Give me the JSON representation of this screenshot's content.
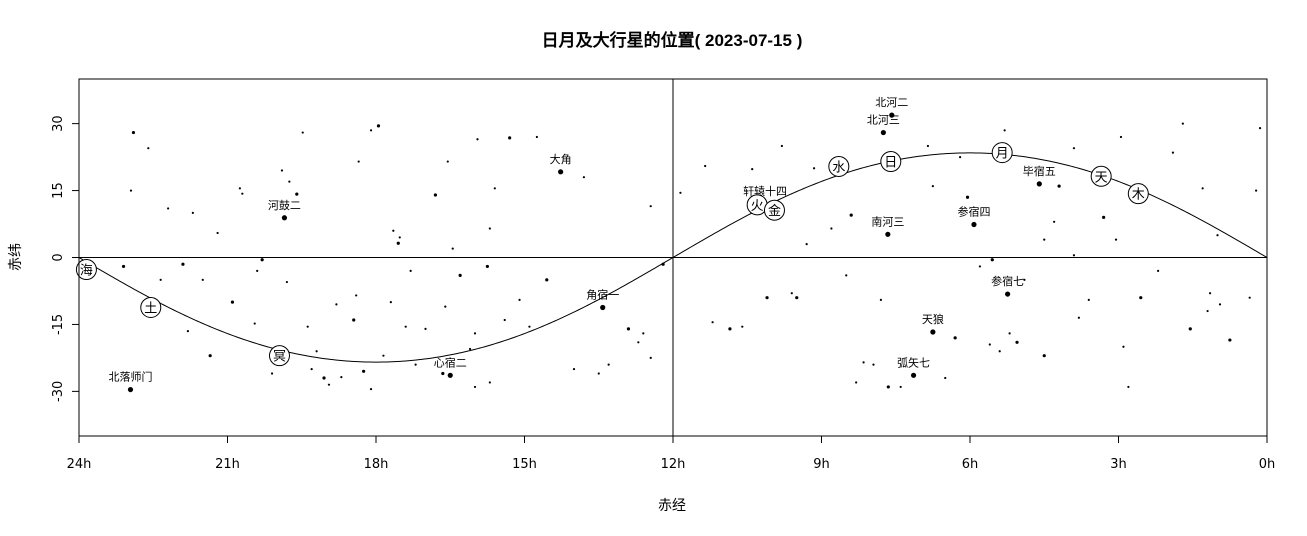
{
  "chart_data": {
    "type": "scatter",
    "title": "日月及大行星的位置( 2023-07-15 )",
    "xlabel": "赤经",
    "ylabel": "赤纬",
    "xlim": [
      24,
      0
    ],
    "ylim": [
      -40,
      40
    ],
    "x_ticks": [
      {
        "value": 24,
        "label": "24h"
      },
      {
        "value": 21,
        "label": "21h"
      },
      {
        "value": 18,
        "label": "18h"
      },
      {
        "value": 15,
        "label": "15h"
      },
      {
        "value": 12,
        "label": "12h"
      },
      {
        "value": 9,
        "label": "9h"
      },
      {
        "value": 6,
        "label": "6h"
      },
      {
        "value": 3,
        "label": "3h"
      },
      {
        "value": 0,
        "label": "0h"
      }
    ],
    "y_ticks": [
      {
        "value": 30,
        "label": "30"
      },
      {
        "value": 15,
        "label": "15"
      },
      {
        "value": 0,
        "label": "0"
      },
      {
        "value": -15,
        "label": "-15"
      },
      {
        "value": -30,
        "label": "-30"
      }
    ],
    "ecliptic_obliquity": 23.44,
    "bodies": [
      {
        "symbol": "海",
        "ra": 23.85,
        "dec": -2.7
      },
      {
        "symbol": "土",
        "ra": 22.55,
        "dec": -11.2
      },
      {
        "symbol": "冥",
        "ra": 19.95,
        "dec": -22.0
      },
      {
        "symbol": "火",
        "ra": 10.3,
        "dec": 11.8
      },
      {
        "symbol": "金",
        "ra": 9.95,
        "dec": 10.6
      },
      {
        "symbol": "水",
        "ra": 8.65,
        "dec": 20.4
      },
      {
        "symbol": "日",
        "ra": 7.6,
        "dec": 21.5
      },
      {
        "symbol": "月",
        "ra": 5.35,
        "dec": 23.5
      },
      {
        "symbol": "天",
        "ra": 3.35,
        "dec": 18.2
      },
      {
        "symbol": "木",
        "ra": 2.6,
        "dec": 14.3
      }
    ],
    "labeled_stars": [
      {
        "name": "心宿二",
        "ra": 16.5,
        "dec": -26.4
      },
      {
        "name": "大角",
        "ra": 14.27,
        "dec": 19.2
      },
      {
        "name": "河鼓二",
        "ra": 19.85,
        "dec": 8.9
      },
      {
        "name": "角宿一",
        "ra": 13.42,
        "dec": -11.2
      },
      {
        "name": "北落师门",
        "ra": 22.96,
        "dec": -29.6
      },
      {
        "name": "北河二",
        "ra": 7.58,
        "dec": 31.9
      },
      {
        "name": "北河三",
        "ra": 7.75,
        "dec": 28.0
      },
      {
        "name": "轩辕十四",
        "ra": 10.14,
        "dec": 11.97
      },
      {
        "name": "毕宿五",
        "ra": 4.6,
        "dec": 16.5
      },
      {
        "name": "南河三",
        "ra": 7.66,
        "dec": 5.2
      },
      {
        "name": "参宿四",
        "ra": 5.92,
        "dec": 7.4
      },
      {
        "name": "参宿七",
        "ra": 5.24,
        "dec": -8.2
      },
      {
        "name": "天狼",
        "ra": 6.75,
        "dec": -16.7
      },
      {
        "name": "弧矢七",
        "ra": 7.14,
        "dec": -26.4
      }
    ],
    "stars": [
      [
        22.9,
        28
      ],
      [
        22.95,
        15
      ],
      [
        22.6,
        24.5
      ],
      [
        22.2,
        11
      ],
      [
        21.9,
        -1.5
      ],
      [
        21.7,
        10
      ],
      [
        21.5,
        -5
      ],
      [
        21.2,
        5.5
      ],
      [
        20.9,
        -10
      ],
      [
        20.75,
        15.5
      ],
      [
        20.7,
        14.3
      ],
      [
        20.45,
        -14.8
      ],
      [
        20.3,
        -0.5
      ],
      [
        19.9,
        19.5
      ],
      [
        19.75,
        17
      ],
      [
        19.8,
        -5.5
      ],
      [
        19.6,
        14.2
      ],
      [
        19.48,
        28
      ],
      [
        19.38,
        -15.5
      ],
      [
        19.2,
        -21
      ],
      [
        19.05,
        -27
      ],
      [
        18.95,
        -28.5
      ],
      [
        18.7,
        -26.8
      ],
      [
        18.4,
        -8.5
      ],
      [
        18.25,
        -25.5
      ],
      [
        18.1,
        -29.5
      ],
      [
        18.35,
        21.5
      ],
      [
        18.1,
        28.5
      ],
      [
        17.95,
        29.5
      ],
      [
        17.7,
        -10
      ],
      [
        17.65,
        6
      ],
      [
        17.52,
        4.5
      ],
      [
        17.55,
        3.2
      ],
      [
        17.4,
        -15.5
      ],
      [
        17.2,
        -24
      ],
      [
        17.0,
        -16
      ],
      [
        16.8,
        14
      ],
      [
        16.6,
        -11
      ],
      [
        16.55,
        21.5
      ],
      [
        16.45,
        2
      ],
      [
        16.3,
        -4
      ],
      [
        16.1,
        -20.5
      ],
      [
        16.0,
        -17
      ],
      [
        15.95,
        26.5
      ],
      [
        15.75,
        -2
      ],
      [
        15.7,
        6.5
      ],
      [
        15.6,
        15.5
      ],
      [
        15.4,
        -14
      ],
      [
        15.3,
        26.8
      ],
      [
        15.1,
        -9.5
      ],
      [
        14.9,
        -15.5
      ],
      [
        14.75,
        27
      ],
      [
        14.55,
        -5
      ],
      [
        14.0,
        -25
      ],
      [
        13.8,
        18
      ],
      [
        13.3,
        -24
      ],
      [
        12.9,
        -16
      ],
      [
        12.6,
        -17
      ],
      [
        12.45,
        -22.5
      ],
      [
        12.45,
        11.5
      ],
      [
        12.2,
        -1.5
      ],
      [
        11.85,
        14.5
      ],
      [
        11.35,
        20.5
      ],
      [
        11.2,
        -14.5
      ],
      [
        10.85,
        -16
      ],
      [
        10.6,
        -15.5
      ],
      [
        10.4,
        19.8
      ],
      [
        9.8,
        25
      ],
      [
        9.5,
        -9
      ],
      [
        9.3,
        3
      ],
      [
        8.8,
        6.5
      ],
      [
        8.5,
        -4
      ],
      [
        8.4,
        9.5
      ],
      [
        8.15,
        -23.5
      ],
      [
        7.95,
        -24
      ],
      [
        7.8,
        -9.5
      ],
      [
        7.65,
        -29
      ],
      [
        7.4,
        -29
      ],
      [
        6.85,
        25
      ],
      [
        6.75,
        16
      ],
      [
        6.3,
        -18
      ],
      [
        6.2,
        22.5
      ],
      [
        5.8,
        -2
      ],
      [
        5.6,
        -19.5
      ],
      [
        5.55,
        -0.5
      ],
      [
        5.4,
        -21
      ],
      [
        5.3,
        28.5
      ],
      [
        5.2,
        -17
      ],
      [
        5.05,
        -19
      ],
      [
        4.9,
        -5
      ],
      [
        4.5,
        4
      ],
      [
        4.3,
        8
      ],
      [
        4.2,
        16
      ],
      [
        3.9,
        24.5
      ],
      [
        3.8,
        -13.5
      ],
      [
        3.6,
        -9.5
      ],
      [
        3.3,
        9
      ],
      [
        3.05,
        4
      ],
      [
        2.95,
        27
      ],
      [
        2.8,
        -29
      ],
      [
        2.55,
        -9
      ],
      [
        2.2,
        -3
      ],
      [
        1.9,
        23.5
      ],
      [
        1.7,
        30
      ],
      [
        1.55,
        -16
      ],
      [
        1.3,
        15.5
      ],
      [
        1.15,
        -8
      ],
      [
        0.95,
        -10.5
      ],
      [
        0.75,
        -18.5
      ],
      [
        0.35,
        -9
      ],
      [
        0.22,
        15
      ],
      [
        0.14,
        29
      ],
      [
        21.35,
        -22
      ],
      [
        20.4,
        -3
      ],
      [
        18.8,
        -10.5
      ],
      [
        17.3,
        -3
      ],
      [
        16.65,
        -26
      ],
      [
        15.7,
        -28
      ],
      [
        16.0,
        -29
      ],
      [
        13.5,
        -26
      ],
      [
        10.1,
        -9
      ],
      [
        9.6,
        -8
      ],
      [
        8.3,
        -28
      ],
      [
        6.5,
        -27
      ],
      [
        4.5,
        -22
      ],
      [
        2.9,
        -20
      ],
      [
        1.2,
        -12
      ],
      [
        22.35,
        -5
      ],
      [
        23.1,
        -2
      ],
      [
        21.8,
        -16.5
      ],
      [
        20.1,
        -26
      ],
      [
        19.3,
        -25
      ],
      [
        18.45,
        -14
      ],
      [
        17.85,
        -22
      ],
      [
        12.7,
        -19
      ],
      [
        9.15,
        20
      ],
      [
        6.05,
        13.5
      ],
      [
        3.9,
        0.5
      ],
      [
        1.0,
        5
      ]
    ]
  }
}
